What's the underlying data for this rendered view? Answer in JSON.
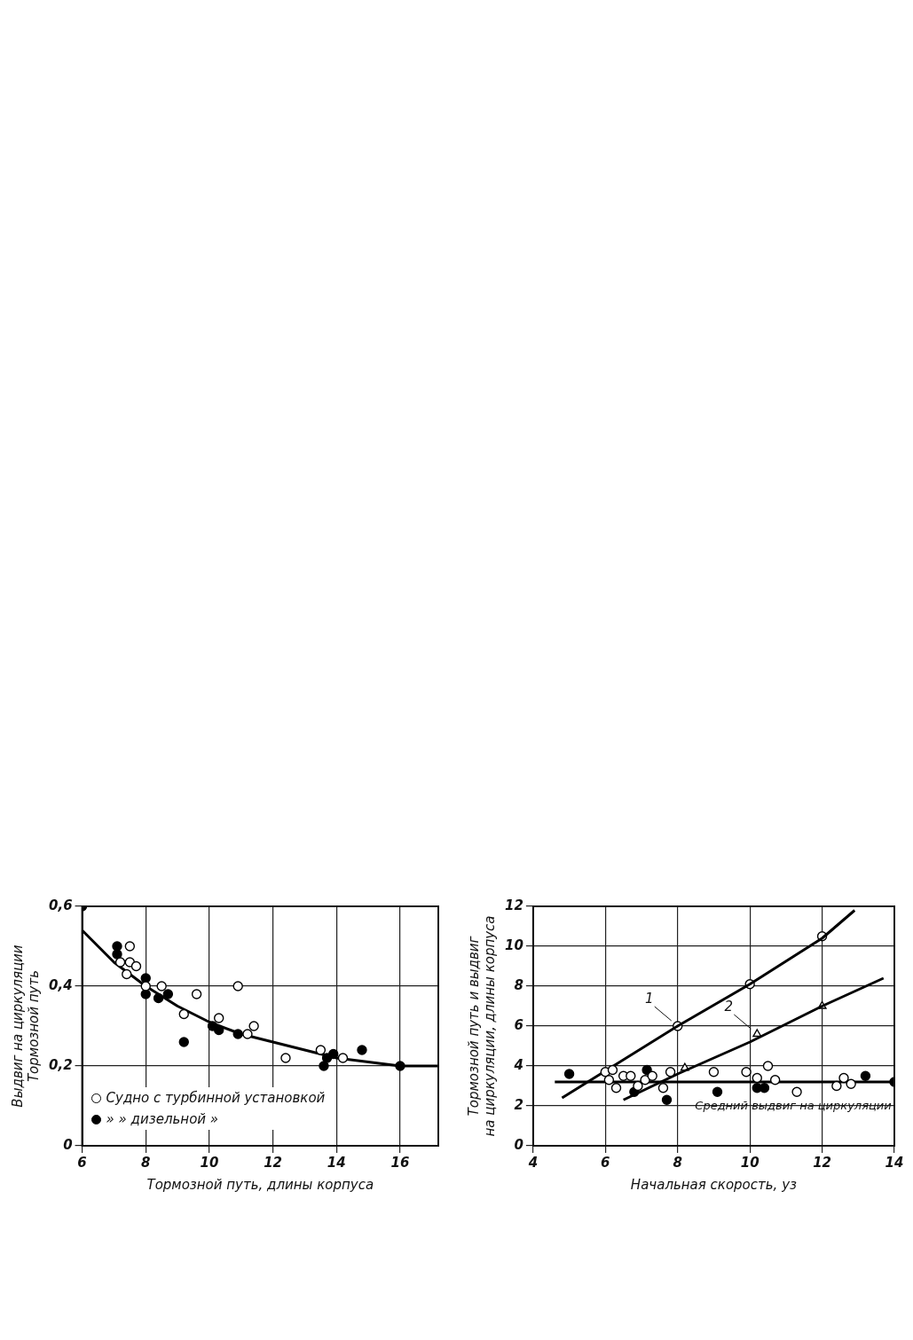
{
  "chart_data": [
    {
      "type": "scatter",
      "xlabel": "Тормозной путь, длины корпуса",
      "ylabel": "Выдвиг на циркуляции\nТормозной путь",
      "xlim": [
        6,
        17.2
      ],
      "xticks": [
        6,
        8,
        10,
        12,
        14,
        16
      ],
      "ylim": [
        0,
        0.6
      ],
      "yticks": [
        0,
        {
          "value": 0.2,
          "label": "0,2"
        },
        {
          "value": 0.4,
          "label": "0,4"
        },
        {
          "value": 0.6,
          "label": "0,6"
        }
      ],
      "grid": true,
      "legend": "bottom left",
      "marker": "circle",
      "series": [
        {
          "name": "Судно с турбинной установкой",
          "color": "#ffffff",
          "x": [
            7.5,
            7.2,
            7.5,
            7.7,
            7.4,
            8.0,
            8.5,
            9.6,
            9.2,
            10.3,
            10.9,
            11.4,
            11.2,
            12.4,
            13.5,
            14.2
          ],
          "values": [
            0.5,
            0.46,
            0.46,
            0.45,
            0.43,
            0.4,
            0.4,
            0.38,
            0.33,
            0.32,
            0.4,
            0.3,
            0.28,
            0.22,
            0.24,
            0.22
          ]
        },
        {
          "name": "» » дизельной »",
          "color": "#000000",
          "x": [
            6.0,
            7.1,
            7.1,
            8.0,
            8.0,
            8.4,
            8.7,
            9.2,
            10.1,
            10.3,
            10.9,
            13.6,
            13.7,
            13.9,
            14.8,
            16.0
          ],
          "values": [
            0.6,
            0.5,
            0.48,
            0.42,
            0.38,
            0.37,
            0.38,
            0.26,
            0.3,
            0.29,
            0.28,
            0.2,
            0.22,
            0.23,
            0.24,
            0.2
          ]
        },
        {
          "type": "line",
          "marker": "none",
          "color": "#000000",
          "x": [
            6,
            7,
            8,
            9,
            10,
            11,
            12,
            13,
            14,
            15,
            16,
            17.2
          ],
          "values": [
            0.54,
            0.46,
            0.4,
            0.35,
            0.31,
            0.28,
            0.26,
            0.24,
            0.22,
            0.21,
            0.2,
            0.2
          ]
        }
      ]
    },
    {
      "type": "scatter",
      "xlabel": "Начальная скорость, уз",
      "ylabel": "Тормозной путь и выдвиг\nна циркуляции, длины корпуса",
      "xlim": [
        4,
        14
      ],
      "xticks": [
        4,
        6,
        8,
        10,
        12,
        14
      ],
      "ylim": [
        0,
        12
      ],
      "yticks": [
        0,
        2,
        4,
        6,
        8,
        10,
        12
      ],
      "grid": true,
      "marker": "circle",
      "annotations": [
        {
          "text": "1",
          "x": 8,
          "y": 6.0
        },
        {
          "text": "2",
          "x": 10.2,
          "y": 5.6
        },
        {
          "text": "Средний выдвиг на циркуляции",
          "x": 11.2,
          "y": 3.2
        }
      ],
      "series": [
        {
          "color": "#ffffff",
          "x": [
            6.0,
            6.1,
            6.2,
            6.3,
            6.5,
            6.7,
            6.9,
            7.1,
            7.3,
            7.6,
            7.8,
            9.0,
            9.9,
            10.5,
            10.2,
            10.7,
            11.3,
            12.4,
            12.8,
            12.6
          ],
          "values": [
            3.7,
            3.3,
            3.8,
            2.9,
            3.5,
            3.5,
            3.0,
            3.3,
            3.5,
            2.9,
            3.7,
            3.7,
            3.7,
            4.0,
            3.4,
            3.3,
            2.7,
            3.0,
            3.1,
            3.4
          ]
        },
        {
          "color": "#000000",
          "x": [
            5.0,
            6.8,
            7.15,
            7.7,
            9.1,
            10.2,
            10.4,
            13.2,
            14.0
          ],
          "values": [
            3.6,
            2.7,
            3.8,
            2.3,
            2.7,
            2.9,
            2.9,
            3.5,
            3.2
          ]
        },
        {
          "type": "line",
          "marker": "none",
          "color": "#000000",
          "x": [
            4.8,
            8,
            10,
            12,
            12.9
          ],
          "values": [
            2.4,
            6.0,
            8.1,
            10.4,
            11.8
          ]
        },
        {
          "color": "#ffffff",
          "x": [
            8,
            10,
            12
          ],
          "values": [
            6.0,
            8.1,
            10.5
          ]
        },
        {
          "type": "line",
          "marker": "none",
          "color": "#000000",
          "x": [
            6.5,
            8,
            10,
            12,
            13.7
          ],
          "values": [
            2.3,
            3.6,
            5.2,
            7.0,
            8.4
          ]
        },
        {
          "color": "#ffffff",
          "marker": "triangle",
          "x": [
            8.2,
            10.2,
            12.0
          ],
          "values": [
            3.9,
            5.6,
            7.0
          ]
        },
        {
          "type": "line",
          "marker": "none",
          "color": "#000000",
          "x": [
            4.6,
            14
          ],
          "values": [
            3.2,
            3.2
          ]
        }
      ]
    }
  ]
}
